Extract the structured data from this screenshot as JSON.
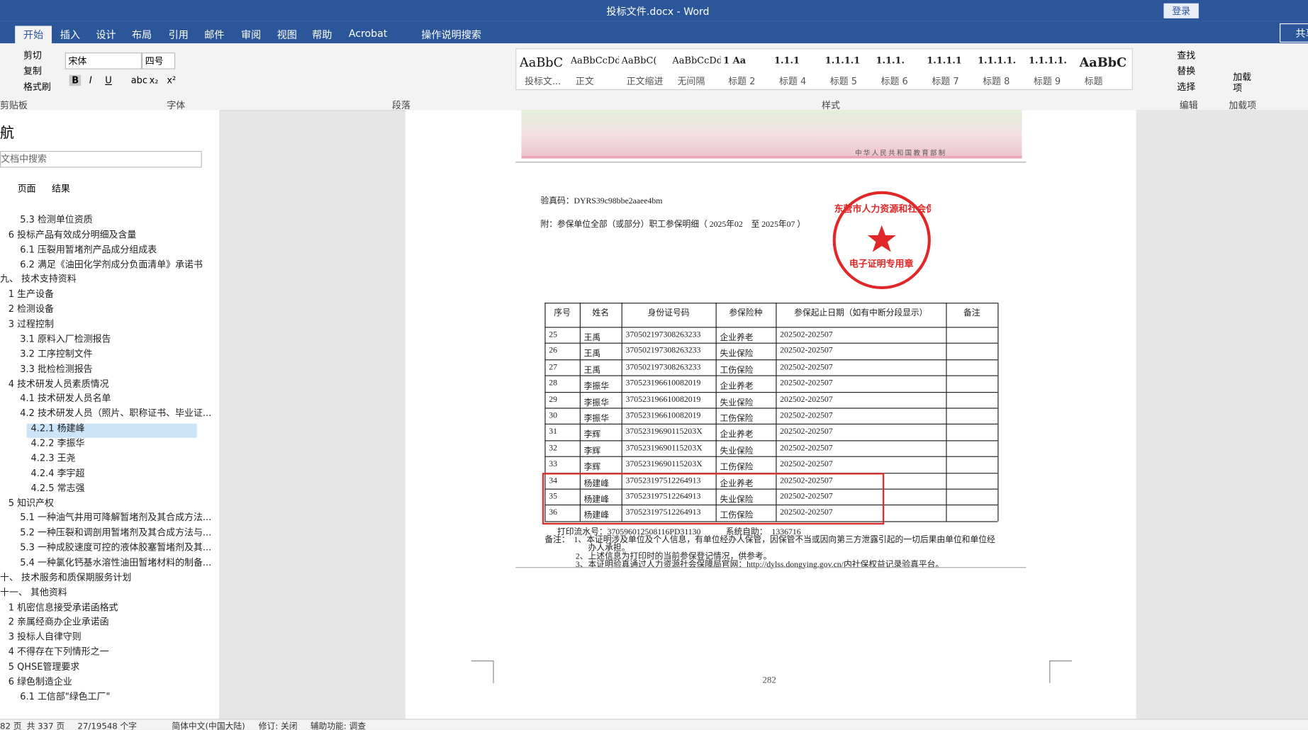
{
  "title_bar": {
    "title": "投标文件.docx  -  Word",
    "login": "登录"
  },
  "tabs": {
    "items": [
      "开始",
      "插入",
      "设计",
      "布局",
      "引用",
      "邮件",
      "审阅",
      "视图",
      "帮助",
      "Acrobat"
    ],
    "search": "操作说明搜索",
    "share": "共享"
  },
  "ribbon": {
    "clipboard": {
      "items": [
        "剪切",
        "复制",
        "格式刷"
      ],
      "label": "剪贴板"
    },
    "font": {
      "name": "宋体",
      "size": "四号",
      "buttons": [
        "B",
        "I",
        "U",
        "abc",
        "x₂",
        "x²"
      ],
      "label": "字体"
    },
    "paragraph": {
      "label": "段落"
    },
    "styles": {
      "items": [
        {
          "preview": "AaBbC",
          "name": "投标文..."
        },
        {
          "preview": "AaBbCcDdI",
          "name": "正文"
        },
        {
          "preview": "AaBbC(",
          "name": "正文缩进"
        },
        {
          "preview": "AaBbCcDdI",
          "name": "无间隔"
        },
        {
          "preview": "1   Aa",
          "name": "标题 2"
        },
        {
          "preview": "1.1.1",
          "name": "标题 4"
        },
        {
          "preview": "1.1.1.1",
          "name": "标题 5"
        },
        {
          "preview": "1.1.1.",
          "name": "标题 6"
        },
        {
          "preview": "1.1.1.1",
          "name": "标题 7"
        },
        {
          "preview": "1.1.1.1.",
          "name": "标题 8"
        },
        {
          "preview": "1.1.1.1.",
          "name": "标题 9"
        },
        {
          "preview": "AaBbC",
          "name": "标题"
        }
      ],
      "label": "样式"
    },
    "editing": {
      "items": [
        "查找",
        "替换",
        "选择"
      ],
      "label": "编辑"
    },
    "addins": {
      "button": "加载项",
      "label": "加载项"
    }
  },
  "nav": {
    "title": "航",
    "search": "文档中搜索",
    "tabs": [
      "页面",
      "结果"
    ],
    "items": [
      {
        "text": "5.3 检测单位资质",
        "level": 2
      },
      {
        "text": "6 投标产品有效成分明细及含量",
        "level": 1
      },
      {
        "text": "6.1 压裂用暂堵剂产品成分组成表",
        "level": 2
      },
      {
        "text": "6.2 满足《油田化学剂成分负面清单》承诺书",
        "level": 2
      },
      {
        "text": "九、 技术支持资料",
        "level": 0
      },
      {
        "text": "1 生产设备",
        "level": 1
      },
      {
        "text": "2 检测设备",
        "level": 1
      },
      {
        "text": "3 过程控制",
        "level": 1
      },
      {
        "text": "3.1 原料入厂检测报告",
        "level": 2
      },
      {
        "text": "3.2 工序控制文件",
        "level": 2
      },
      {
        "text": "3.3 批检检测报告",
        "level": 2
      },
      {
        "text": "4 技术研发人员素质情况",
        "level": 1
      },
      {
        "text": "4.1 技术研发人员名单",
        "level": 2
      },
      {
        "text": "4.2 技术研发人员（照片、职称证书、毕业证...",
        "level": 2
      },
      {
        "text": "4.2.1 杨建峰",
        "level": 3
      },
      {
        "text": "4.2.2 李振华",
        "level": 3
      },
      {
        "text": "4.2.3 王尧",
        "level": 3
      },
      {
        "text": "4.2.4 李宇超",
        "level": 3
      },
      {
        "text": "4.2.5 常志强",
        "level": 3
      },
      {
        "text": "5 知识产权",
        "level": 1
      },
      {
        "text": "5.1 一种油气井用可降解暂堵剂及其合成方法...",
        "level": 2
      },
      {
        "text": "5.2 一种压裂和调剖用暂堵剂及其合成方法与...",
        "level": 2
      },
      {
        "text": "5.3 一种成胶速度可控的液体胶塞暂堵剂及其...",
        "level": 2
      },
      {
        "text": "5.4 一种氯化钙基水溶性油田暂堵材料的制备...",
        "level": 2
      },
      {
        "text": "十、 技术服务和质保期服务计划",
        "level": 0
      },
      {
        "text": "十一、 其他资料",
        "level": 0
      },
      {
        "text": "1 机密信息接受承诺函格式",
        "level": 1
      },
      {
        "text": "2 亲属经商办企业承诺函",
        "level": 1
      },
      {
        "text": "3 投标人自律守则",
        "level": 1
      },
      {
        "text": "4 不得存在下列情形之一",
        "level": 1
      },
      {
        "text": "5 QHSE管理要求",
        "level": 1
      },
      {
        "text": "6 绿色制造企业",
        "level": 1
      },
      {
        "text": "6.1 工信部\"绿色工厂\"",
        "level": 2
      }
    ],
    "selected": "4.2.1 杨建峰"
  },
  "document": {
    "certificate_footer": "中 华 人 民 共 和 国 教 育 部 制",
    "verify_code": "验真码：DYRS39c98bbe2aaee4bm",
    "attachment": "附：参保单位全部（或部分）职工参保明细（ 2025年02　至 2025年07 ）",
    "stamp": {
      "org": "东营市人力资源和社会保障局",
      "purpose": "电子证明专用章"
    },
    "table": {
      "headers": [
        "序号",
        "姓名",
        "身份证号码",
        "参保险种",
        "参保起止日期（如有中断分段显示）",
        "备注"
      ],
      "rows": [
        [
          "25",
          "王禹",
          "370502197308263233",
          "企业养老",
          "202502-202507"
        ],
        [
          "26",
          "王禹",
          "370502197308263233",
          "失业保险",
          "202502-202507"
        ],
        [
          "27",
          "王禹",
          "370502197308263233",
          "工伤保险",
          "202502-202507"
        ],
        [
          "28",
          "李振华",
          "370523196610082019",
          "企业养老",
          "202502-202507"
        ],
        [
          "29",
          "李振华",
          "370523196610082019",
          "失业保险",
          "202502-202507"
        ],
        [
          "30",
          "李振华",
          "370523196610082019",
          "工伤保险",
          "202502-202507"
        ],
        [
          "31",
          "李辉",
          "37052319690115203X",
          "企业养老",
          "202502-202507"
        ],
        [
          "32",
          "李辉",
          "37052319690115203X",
          "失业保险",
          "202502-202507"
        ],
        [
          "33",
          "李辉",
          "37052319690115203X",
          "工伤保险",
          "202502-202507"
        ],
        [
          "34",
          "杨建峰",
          "370523197512264913",
          "企业养老",
          "202502-202507"
        ],
        [
          "35",
          "杨建峰",
          "370523197512264913",
          "失业保险",
          "202502-202507"
        ],
        [
          "36",
          "杨建峰",
          "370523197512264913",
          "工伤保险",
          "202502-202507"
        ]
      ]
    },
    "print_serial": "打印流水号：370596012508116PD31130　　　系统自助：　1336716",
    "notes": [
      "备注：　1、本证明涉及单位及个人信息，有单位经办人保管，因保管不当或因向第三方泄露引起的一切后果由单位和单位经",
      "办人承担。",
      "2、上述信息为打印时的当前参保登记情况，供参考。",
      "3、本证明验真通过人力资源社会保障局官网：http://dylss.dongying.gov.cn/内社保权益记录验真平台。"
    ],
    "page_number": "282"
  },
  "status_bar": [
    "82 页",
    "共 337 页",
    "27/19548 个字",
    "简体中文(中国大陆)",
    "修订: 关闭",
    "辅助功能: 调查"
  ]
}
